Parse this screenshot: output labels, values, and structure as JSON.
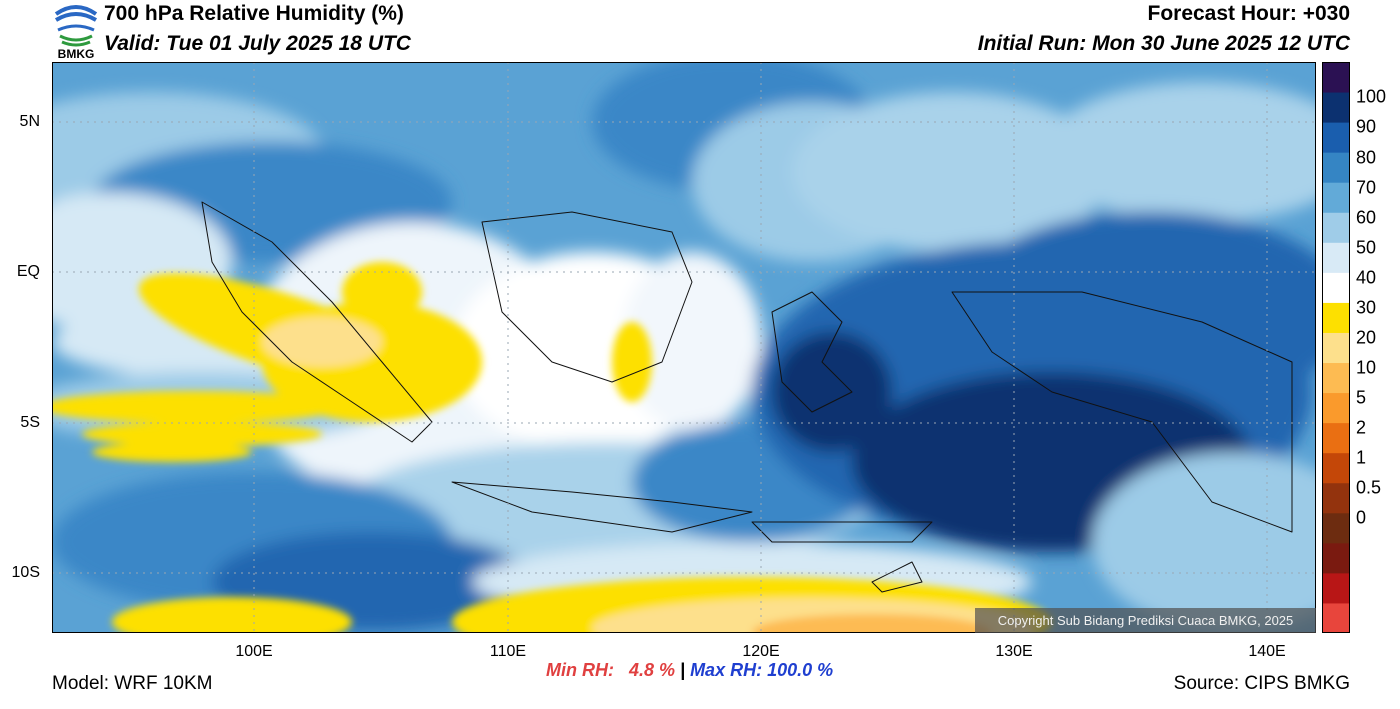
{
  "header": {
    "title": "700 hPa Relative Humidity (%)",
    "valid": "Valid: Tue 01 July 2025 18 UTC",
    "forecast_hour": "Forecast Hour: +030",
    "initial_run": "Initial Run: Mon 30 June 2025 12 UTC",
    "logo_text": "BMKG"
  },
  "map": {
    "lat_labels": [
      "5N",
      "EQ",
      "5S",
      "10S"
    ],
    "lon_labels": [
      "100E",
      "110E",
      "120E",
      "130E",
      "140E"
    ],
    "copyright": "Copyright Sub Bidang Prediksi Cuaca BMKG, 2025"
  },
  "colorbar": {
    "labels": [
      "100",
      "90",
      "80",
      "70",
      "60",
      "50",
      "40",
      "30",
      "20",
      "10",
      "5",
      "2",
      "1",
      "0.5",
      "0"
    ],
    "colors": [
      "#e8453c",
      "#b81616",
      "#7a1a10",
      "#6d2c10",
      "#93330d",
      "#c44708",
      "#ea6f12",
      "#fa9a2c",
      "#fdbb52",
      "#fde08c",
      "#fde000",
      "#ffffff",
      "#d8eaf6",
      "#9fcce8",
      "#62aad8",
      "#3585c4",
      "#1a5eae",
      "#0c3170",
      "#2b1153"
    ]
  },
  "stats": {
    "min": "Min RH:   4.8 %",
    "sep": " | ",
    "max": "Max RH: 100.0 %"
  },
  "footer": {
    "model": "Model: WRF 10KM",
    "source": "Source: CIPS BMKG"
  }
}
